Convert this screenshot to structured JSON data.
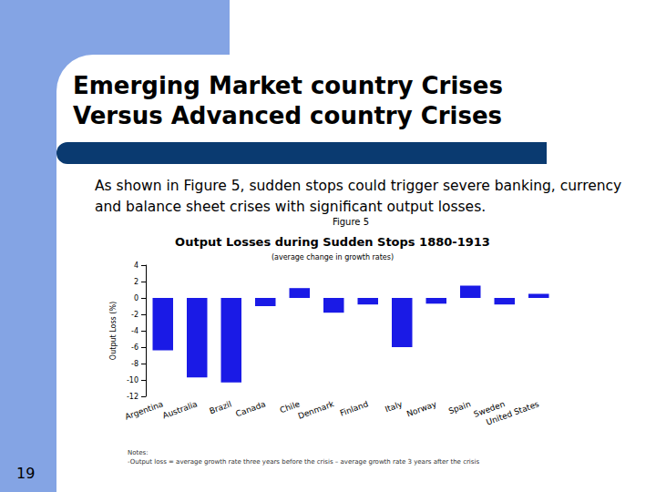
{
  "slide": {
    "title": [
      "Emerging Market country Crises",
      "Versus Advanced country  Crises"
    ],
    "text": "As shown in Figure 5, sudden stops could trigger severe banking, currency and balance sheet crises with significant output losses.",
    "figure_label": "Figure 5",
    "page_number": "19"
  },
  "chart_data": {
    "type": "bar",
    "title": "Output Losses during Sudden Stops 1880-1913",
    "subtitle": "(average change in growth rates)",
    "ylabel": "Output Loss (%)",
    "categories": [
      "Argentina",
      "Australia",
      "Brazil",
      "Canada",
      "Chile",
      "Denmark",
      "Finland",
      "Italy",
      "Norway",
      "Spain",
      "Sweden",
      "United States"
    ],
    "values": [
      -6.4,
      -9.7,
      -10.3,
      -1.0,
      1.2,
      -1.8,
      -0.8,
      -6.0,
      -0.7,
      1.5,
      -0.8,
      0.5
    ],
    "color": "#1a1ae6",
    "ylim": [
      -12,
      4
    ],
    "yticks": [
      -12,
      -10,
      -8,
      -6,
      -4,
      -2,
      0,
      2,
      4
    ],
    "grid": false,
    "data_labels": false,
    "notes": [
      "Notes:",
      "-Output loss = average growth rate three years before the crisis – average growth rate 3 years after the crisis"
    ]
  }
}
